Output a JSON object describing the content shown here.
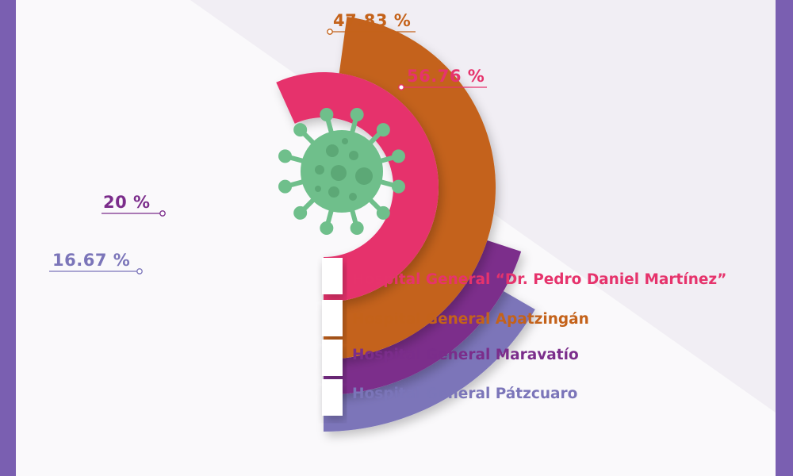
{
  "chart_data": {
    "type": "radial-bar",
    "max_value": 100,
    "series": [
      {
        "name": "Hospital General “Dr. Pedro Daniel Martínez”",
        "value": 56.76,
        "label": "56.76 %",
        "color": "#e6336c"
      },
      {
        "name": "Hospital General Apatzingán",
        "value": 47.83,
        "label": "47.83 %",
        "color": "#c4621a"
      },
      {
        "name": "Hospital General Maravatío",
        "value": 20,
        "label": "20 %",
        "color": "#7b2d8b"
      },
      {
        "name": "Hospital General Pátzcuaro",
        "value": 16.67,
        "label": "16.67 %",
        "color": "#7b75b9"
      }
    ]
  },
  "colors": {
    "background_frame": "#7a5fb1",
    "panel": "#f3f2f5",
    "panel_highlight": "#ffffff",
    "virus": "#6fbf8b",
    "virus_spots": "#5ca876"
  },
  "icons": {
    "center": "virus-icon"
  }
}
